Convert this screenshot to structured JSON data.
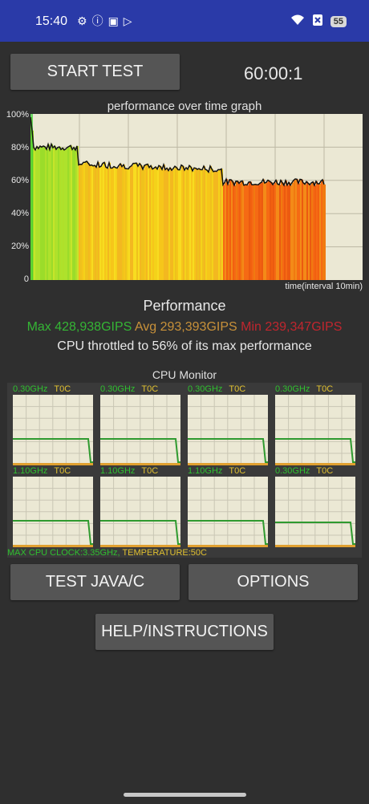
{
  "status": {
    "time": "15:40",
    "battery": "55",
    "left_icons": [
      "settings-icon",
      "info-icon",
      "game-icon",
      "play-icon"
    ],
    "right_icons": [
      "wifi-icon",
      "sim-off-icon",
      "battery-icon"
    ]
  },
  "controls": {
    "start_label": "START TEST",
    "timer": "60:00:1",
    "java_label": "TEST JAVA/C",
    "options_label": "OPTIONS",
    "help_label": "HELP/INSTRUCTIONS"
  },
  "graph": {
    "title": "performance over time graph",
    "y_ticks": [
      "100%",
      "80%",
      "60%",
      "40%",
      "20%",
      "0"
    ],
    "x_caption": "time(interval 10min)"
  },
  "performance": {
    "title": "Performance",
    "max": "Max 428,938GIPS",
    "avg": "Avg 293,393GIPS",
    "min": "Min 239,347GIPS",
    "throttle": "CPU throttled to 56% of its max performance",
    "colors": {
      "max": "#35b535",
      "avg": "#c8913a",
      "min": "#c0262e"
    }
  },
  "cpu_monitor": {
    "title": "CPU Monitor",
    "cores": [
      {
        "freq": "0.30GHz",
        "temp": "T0C",
        "load_level": 0.38
      },
      {
        "freq": "0.30GHz",
        "temp": "T0C",
        "load_level": 0.38
      },
      {
        "freq": "0.30GHz",
        "temp": "T0C",
        "load_level": 0.38
      },
      {
        "freq": "0.30GHz",
        "temp": "T0C",
        "load_level": 0.38
      },
      {
        "freq": "1.10GHz",
        "temp": "T0C",
        "load_level": 0.38
      },
      {
        "freq": "1.10GHz",
        "temp": "T0C",
        "load_level": 0.38
      },
      {
        "freq": "1.10GHz",
        "temp": "T0C",
        "load_level": 0.38
      },
      {
        "freq": "0.30GHz",
        "temp": "T0C",
        "load_level": 0.35
      }
    ],
    "footer_clock": "MAX CPU CLOCK:3.35GHz,",
    "footer_temp": " TEMPERATURE:50C"
  }
}
